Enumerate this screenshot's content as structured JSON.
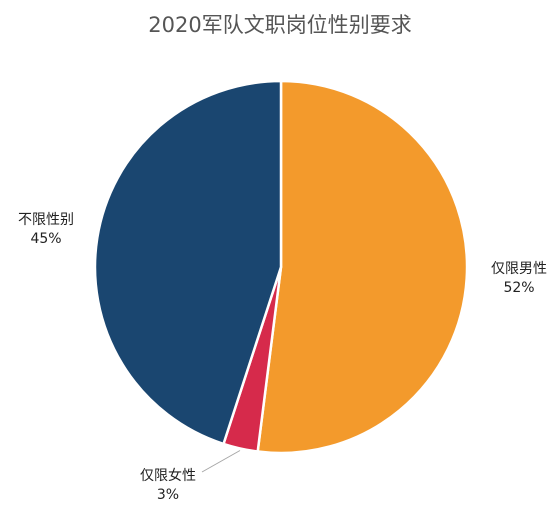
{
  "chart_data": {
    "type": "pie",
    "title": "2020军队文职岗位性别要求",
    "slices": [
      {
        "label": "仅限男性",
        "value": 52,
        "pct_label": "52%",
        "color": "#F39A2C"
      },
      {
        "label": "仅限女性",
        "value": 3,
        "pct_label": "3%",
        "color": "#D62A4B"
      },
      {
        "label": "不限性别",
        "value": 45,
        "pct_label": "45%",
        "color": "#1A4670"
      }
    ],
    "legend": "none"
  }
}
